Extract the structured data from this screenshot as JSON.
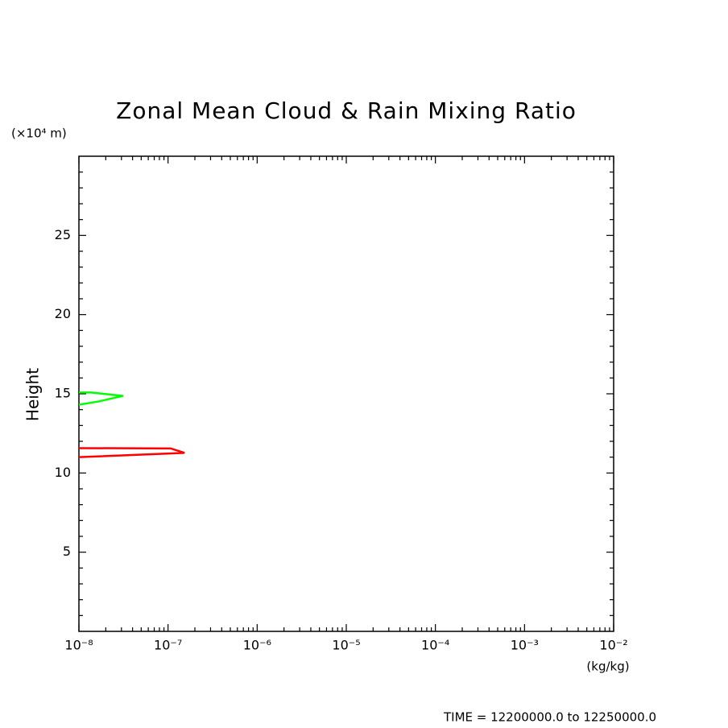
{
  "chart_data": {
    "type": "line",
    "title": "Zonal Mean Cloud & Rain Mixing Ratio",
    "ylabel": "Height",
    "yunit": "(×10⁴ m)",
    "xunit": "(kg/kg)",
    "footer": "TIME = 12200000.0 to 12250000.0",
    "xscale": "log",
    "xlim": [
      1e-08,
      0.01
    ],
    "xticks": [
      {
        "value": 1e-08,
        "label": "10⁻⁸"
      },
      {
        "value": 1e-07,
        "label": "10⁻⁷"
      },
      {
        "value": 1e-06,
        "label": "10⁻⁶"
      },
      {
        "value": 1e-05,
        "label": "10⁻⁵"
      },
      {
        "value": 0.0001,
        "label": "10⁻⁴"
      },
      {
        "value": 0.001,
        "label": "10⁻³"
      },
      {
        "value": 0.01,
        "label": "10⁻²"
      }
    ],
    "xminorticks": [
      2e-08,
      3e-08,
      4e-08,
      5e-08,
      6e-08,
      7e-08,
      8e-08,
      9e-08,
      2e-07,
      3e-07,
      4e-07,
      5e-07,
      6e-07,
      7e-07,
      8e-07,
      9e-07,
      2e-06,
      3e-06,
      4e-06,
      5e-06,
      6e-06,
      7e-06,
      8e-06,
      9e-06,
      2e-05,
      3e-05,
      4e-05,
      5e-05,
      6e-05,
      7e-05,
      8e-05,
      9e-05,
      0.0002,
      0.0003,
      0.0004,
      0.0005,
      0.0006,
      0.0007,
      0.0008,
      0.0009,
      0.002,
      0.003,
      0.004,
      0.005,
      0.006,
      0.007,
      0.008,
      0.009
    ],
    "ylim": [
      0,
      30
    ],
    "yticks": [
      5,
      10,
      15,
      20,
      25
    ],
    "yminorticks": [
      1,
      2,
      3,
      4,
      6,
      7,
      8,
      9,
      11,
      12,
      13,
      14,
      16,
      17,
      18,
      19,
      21,
      22,
      23,
      24,
      26,
      27,
      28,
      29
    ],
    "series": [
      {
        "color": "#ff0000",
        "x": [
          1e-08,
          1.07e-07,
          1.53e-07,
          1e-08
        ],
        "values": [
          11.57,
          11.55,
          11.27,
          11.0
        ]
      },
      {
        "color": "#00ff00",
        "x": [
          1e-08,
          1.37e-08,
          3.14e-08,
          1.68e-08,
          1e-08
        ],
        "values": [
          15.08,
          15.08,
          14.87,
          14.52,
          14.31
        ]
      }
    ]
  }
}
